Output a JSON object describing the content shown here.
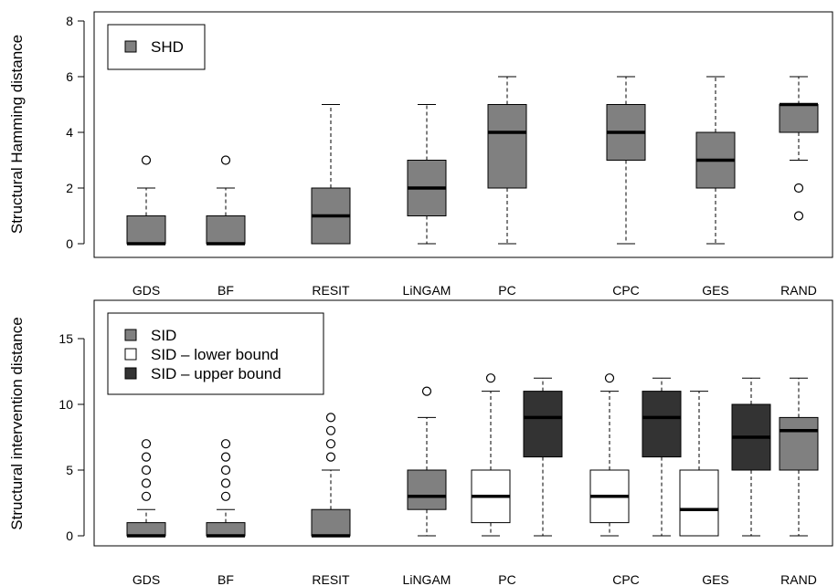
{
  "chart_data": [
    {
      "type": "boxplot",
      "ylabel": "Structural Hamming distance",
      "ylim": [
        0,
        8
      ],
      "yticks": [
        0,
        2,
        4,
        6,
        8
      ],
      "legend": {
        "placement": "top-left",
        "entries": [
          {
            "label": "SHD",
            "color": "#808080"
          }
        ]
      },
      "categories": [
        "GDS",
        "BF",
        "RESIT",
        "LiNGAM",
        "PC",
        "CPC",
        "GES",
        "RAND"
      ],
      "series": [
        {
          "name": "SHD",
          "color": "#808080",
          "boxes": [
            {
              "category": "GDS",
              "min": 0,
              "q1": 0,
              "median": 0,
              "q3": 1,
              "max": 2,
              "outliers": [
                3
              ]
            },
            {
              "category": "BF",
              "min": 0,
              "q1": 0,
              "median": 0,
              "q3": 1,
              "max": 2,
              "outliers": [
                3
              ]
            },
            {
              "category": "RESIT",
              "min": 0,
              "q1": 0,
              "median": 1,
              "q3": 2,
              "max": 5,
              "outliers": []
            },
            {
              "category": "LiNGAM",
              "min": 0,
              "q1": 1,
              "median": 2,
              "q3": 3,
              "max": 5,
              "outliers": []
            },
            {
              "category": "PC",
              "min": 0,
              "q1": 2,
              "median": 4,
              "q3": 5,
              "max": 6,
              "outliers": []
            },
            {
              "category": "CPC",
              "min": 0,
              "q1": 3,
              "median": 4,
              "q3": 5,
              "max": 6,
              "outliers": []
            },
            {
              "category": "GES",
              "min": 0,
              "q1": 2,
              "median": 3,
              "q3": 4,
              "max": 6,
              "outliers": []
            },
            {
              "category": "RAND",
              "min": 3,
              "q1": 4,
              "median": 5,
              "q3": 5,
              "max": 6,
              "outliers": [
                2,
                1
              ]
            }
          ]
        }
      ]
    },
    {
      "type": "boxplot",
      "ylabel": "Structural intervention distance",
      "ylim": [
        0,
        17
      ],
      "yticks": [
        0,
        5,
        10,
        15
      ],
      "legend": {
        "placement": "top-left",
        "entries": [
          {
            "label": "SID",
            "color": "#808080"
          },
          {
            "label": "SID – lower bound",
            "color": "#ffffff"
          },
          {
            "label": "SID – upper bound",
            "color": "#333333"
          }
        ]
      },
      "categories": [
        "GDS",
        "BF",
        "RESIT",
        "LiNGAM",
        "PC",
        "CPC",
        "GES",
        "RAND"
      ],
      "boxes": [
        {
          "category": "GDS",
          "kind": "SID",
          "min": 0,
          "q1": 0,
          "median": 0,
          "q3": 1,
          "max": 2,
          "outliers": [
            3,
            4,
            5,
            6,
            7
          ]
        },
        {
          "category": "BF",
          "kind": "SID",
          "min": 0,
          "q1": 0,
          "median": 0,
          "q3": 1,
          "max": 2,
          "outliers": [
            3,
            4,
            5,
            6,
            7
          ]
        },
        {
          "category": "RESIT",
          "kind": "SID",
          "min": 0,
          "q1": 0,
          "median": 0,
          "q3": 2,
          "max": 5,
          "outliers": [
            6,
            7,
            8,
            9
          ]
        },
        {
          "category": "LiNGAM",
          "kind": "SID",
          "min": 0,
          "q1": 2,
          "median": 3,
          "q3": 5,
          "max": 9,
          "outliers": [
            11
          ]
        },
        {
          "category": "PC",
          "kind": "SID – lower bound",
          "min": 0,
          "q1": 1,
          "median": 3,
          "q3": 5,
          "max": 11,
          "outliers": [
            12
          ]
        },
        {
          "category": "PC",
          "kind": "SID – upper bound",
          "min": 0,
          "q1": 6,
          "median": 9,
          "q3": 11,
          "max": 12,
          "outliers": []
        },
        {
          "category": "CPC",
          "kind": "SID – lower bound",
          "min": 0,
          "q1": 1,
          "median": 3,
          "q3": 5,
          "max": 11,
          "outliers": [
            12
          ]
        },
        {
          "category": "CPC",
          "kind": "SID – upper bound",
          "min": 0,
          "q1": 6,
          "median": 9,
          "q3": 11,
          "max": 12,
          "outliers": []
        },
        {
          "category": "GES",
          "kind": "SID – lower bound",
          "min": 0,
          "q1": 0,
          "median": 2,
          "q3": 5,
          "max": 11,
          "outliers": []
        },
        {
          "category": "GES",
          "kind": "SID – upper bound",
          "min": 0,
          "q1": 5,
          "median": 7.5,
          "q3": 10,
          "max": 12,
          "outliers": []
        },
        {
          "category": "RAND",
          "kind": "SID",
          "min": 0,
          "q1": 5,
          "median": 8,
          "q3": 9,
          "max": 12,
          "outliers": []
        }
      ]
    }
  ]
}
